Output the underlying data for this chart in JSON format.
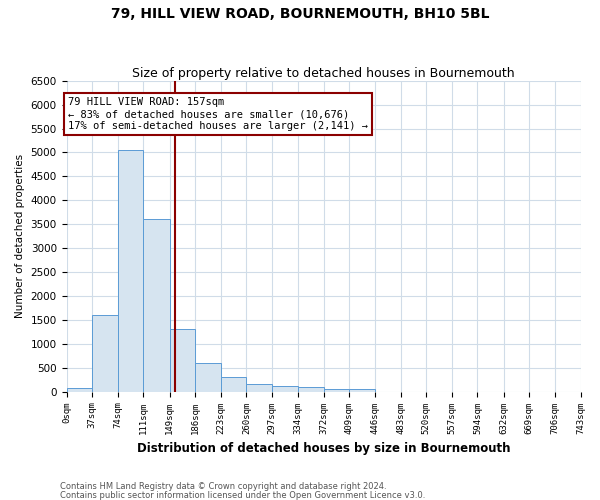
{
  "title": "79, HILL VIEW ROAD, BOURNEMOUTH, BH10 5BL",
  "subtitle": "Size of property relative to detached houses in Bournemouth",
  "xlabel": "Distribution of detached houses by size in Bournemouth",
  "ylabel": "Number of detached properties",
  "bin_edges": [
    0,
    37,
    74,
    111,
    149,
    186,
    223,
    260,
    297,
    334,
    372,
    409,
    446,
    483,
    520,
    557,
    594,
    632,
    669,
    706,
    743
  ],
  "bar_heights": [
    75,
    1600,
    5050,
    3600,
    1300,
    600,
    300,
    160,
    120,
    90,
    50,
    50,
    0,
    0,
    0,
    0,
    0,
    0,
    0,
    0
  ],
  "bar_color": "#d6e4f0",
  "bar_edgecolor": "#5b9bd5",
  "vline_x": 157,
  "vline_color": "#8b0000",
  "ylim": [
    0,
    6500
  ],
  "xlim": [
    0,
    743
  ],
  "annotation_text": "79 HILL VIEW ROAD: 157sqm\n← 83% of detached houses are smaller (10,676)\n17% of semi-detached houses are larger (2,141) →",
  "annotation_box_color": "#8b0000",
  "footnote1": "Contains HM Land Registry data © Crown copyright and database right 2024.",
  "footnote2": "Contains public sector information licensed under the Open Government Licence v3.0.",
  "title_fontsize": 10,
  "subtitle_fontsize": 9,
  "tick_labels": [
    "0sqm",
    "37sqm",
    "74sqm",
    "111sqm",
    "149sqm",
    "186sqm",
    "223sqm",
    "260sqm",
    "297sqm",
    "334sqm",
    "372sqm",
    "409sqm",
    "446sqm",
    "483sqm",
    "520sqm",
    "557sqm",
    "594sqm",
    "632sqm",
    "669sqm",
    "706sqm",
    "743sqm"
  ],
  "background_color": "#ffffff",
  "grid_color": "#d0dce8"
}
